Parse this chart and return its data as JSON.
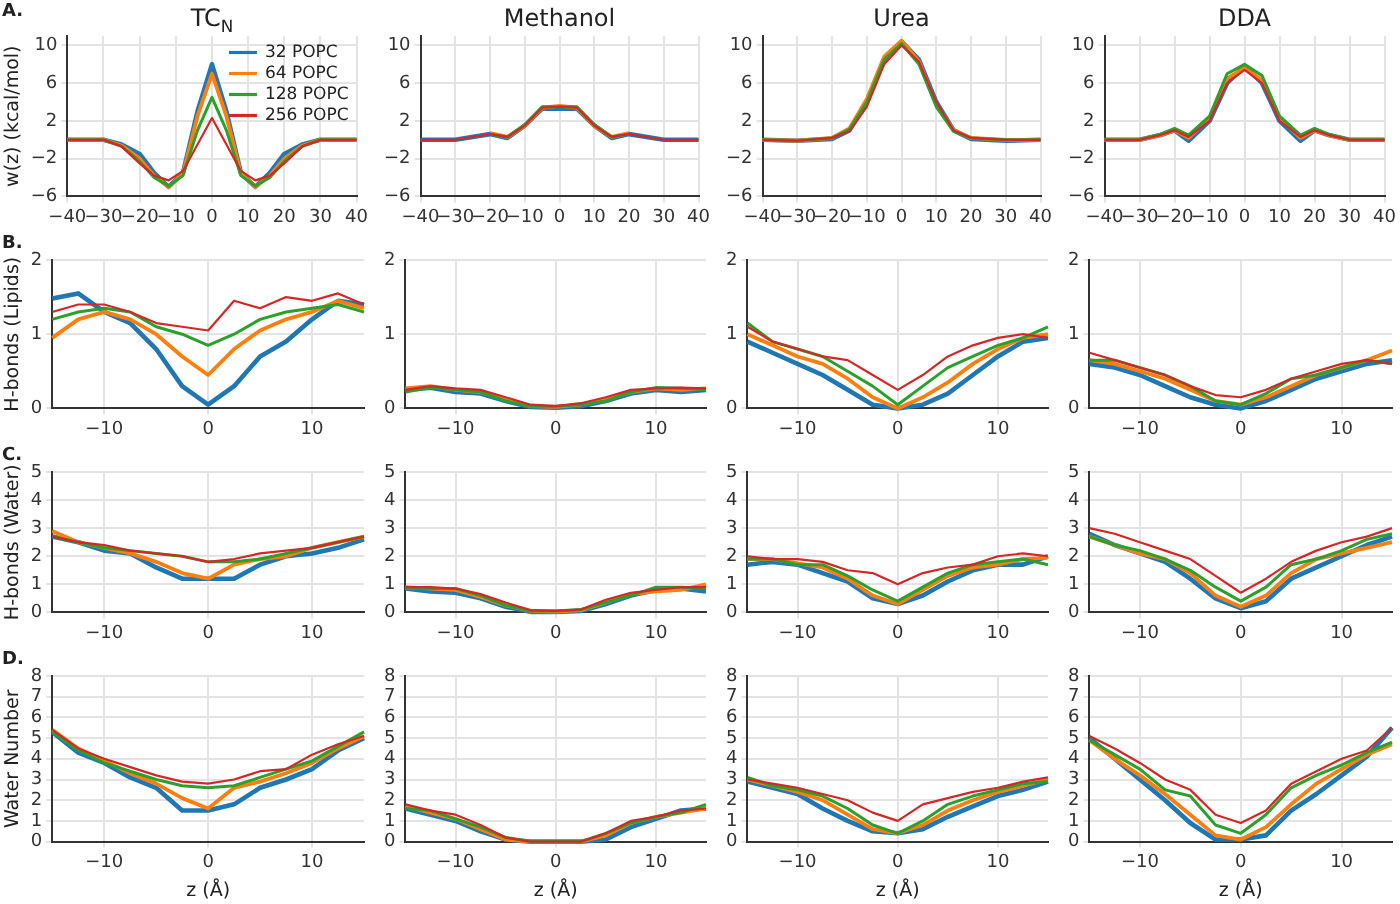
{
  "chart_data": [
    {
      "type": "line",
      "title": "TC$_{N}$",
      "ylabel": "w(z) (kcal/mol)",
      "annotations": [
        "A."
      ],
      "legend": "top right",
      "grid": true,
      "xlim": [
        -40,
        40
      ],
      "ylim": [
        -6,
        11
      ],
      "xticks": [
        -40,
        -30,
        -20,
        -10,
        0,
        10,
        20,
        30,
        40
      ],
      "yticks": [
        -6,
        -2,
        2,
        6,
        10
      ],
      "x": [
        -40,
        -30,
        -25,
        -20,
        -16,
        -12,
        -8,
        -4,
        0,
        4,
        8,
        12,
        16,
        20,
        25,
        30,
        40
      ],
      "series": [
        {
          "name": "32 POPC",
          "color": "#1f77b4",
          "values": [
            0,
            0,
            -0.5,
            -1.5,
            -3.5,
            -5,
            -3.5,
            3,
            8,
            3,
            -3.5,
            -5,
            -3.5,
            -1.5,
            -0.5,
            0,
            0
          ]
        },
        {
          "name": "64 POPC",
          "color": "#ff7f0e",
          "values": [
            0,
            0,
            -0.6,
            -2,
            -3.8,
            -5,
            -3.6,
            2.5,
            7,
            2.5,
            -3.6,
            -5,
            -3.8,
            -2,
            -0.6,
            0,
            0
          ]
        },
        {
          "name": "128 POPC",
          "color": "#2ca02c",
          "values": [
            0,
            0,
            -0.7,
            -2.3,
            -4,
            -4.9,
            -3.8,
            1,
            4.5,
            1,
            -3.8,
            -4.9,
            -4,
            -2.3,
            -0.7,
            0,
            0
          ]
        },
        {
          "name": "256 POPC",
          "color": "#d62728",
          "values": [
            0,
            0,
            -0.7,
            -2.5,
            -3.8,
            -4.3,
            -3.3,
            -0.5,
            2.3,
            -0.5,
            -3.3,
            -4.3,
            -3.8,
            -2.5,
            -0.7,
            0,
            0
          ]
        }
      ]
    },
    {
      "type": "line",
      "title": "Methanol",
      "grid": true,
      "xlim": [
        -40,
        40
      ],
      "ylim": [
        -6,
        11
      ],
      "xticks": [
        -40,
        -30,
        -20,
        -10,
        0,
        10,
        20,
        30,
        40
      ],
      "yticks": [
        -6,
        -2,
        2,
        6,
        10
      ],
      "x": [
        -40,
        -30,
        -20,
        -15,
        -10,
        -5,
        0,
        5,
        10,
        15,
        20,
        30,
        40
      ],
      "series": [
        {
          "color": "#1f77b4",
          "values": [
            0,
            0,
            0.6,
            0.2,
            1.5,
            3.3,
            3.3,
            3.3,
            1.5,
            0.2,
            0.6,
            0,
            0
          ]
        },
        {
          "color": "#ff7f0e",
          "values": [
            null,
            null,
            0.7,
            0.3,
            1.5,
            3.4,
            3.6,
            3.4,
            1.5,
            0.3,
            0.7,
            null,
            null
          ]
        },
        {
          "color": "#2ca02c",
          "values": [
            null,
            null,
            0.6,
            0.3,
            1.6,
            3.5,
            3.5,
            3.5,
            1.6,
            0.3,
            0.6,
            null,
            null
          ]
        },
        {
          "color": "#d62728",
          "values": [
            0,
            0,
            0.6,
            0.3,
            1.5,
            3.4,
            3.5,
            3.4,
            1.5,
            0.3,
            0.6,
            0,
            0
          ]
        }
      ]
    },
    {
      "type": "line",
      "title": "Urea",
      "grid": true,
      "xlim": [
        -40,
        40
      ],
      "ylim": [
        -6,
        11
      ],
      "xticks": [
        -40,
        -30,
        -20,
        -10,
        0,
        10,
        20,
        30,
        40
      ],
      "yticks": [
        -6,
        -2,
        2,
        6,
        10
      ],
      "x": [
        -40,
        -30,
        -20,
        -15,
        -10,
        -5,
        0,
        5,
        10,
        15,
        20,
        30,
        40
      ],
      "series": [
        {
          "color": "#1f77b4",
          "values": [
            0,
            -0.1,
            0.1,
            1,
            4,
            8.5,
            10.4,
            8.5,
            4,
            1,
            0.1,
            -0.1,
            0
          ]
        },
        {
          "color": "#ff7f0e",
          "values": [
            0,
            -0.1,
            0.2,
            1.2,
            4.3,
            8.8,
            10.5,
            8.3,
            3.7,
            1,
            0.2,
            0,
            0
          ]
        },
        {
          "color": "#2ca02c",
          "values": [
            0,
            -0.1,
            0.2,
            1.1,
            4,
            8.5,
            10.2,
            8,
            3.5,
            0.9,
            0.2,
            0,
            0
          ]
        },
        {
          "color": "#d62728",
          "values": [
            0,
            -0.1,
            0.2,
            0.9,
            3.5,
            8,
            10,
            8.3,
            4,
            1,
            0.2,
            0,
            0
          ]
        }
      ]
    },
    {
      "type": "line",
      "title": "DDA",
      "grid": true,
      "xlim": [
        -40,
        40
      ],
      "ylim": [
        -6,
        11
      ],
      "xticks": [
        -40,
        -30,
        -20,
        -10,
        0,
        10,
        20,
        30,
        40
      ],
      "yticks": [
        -6,
        -2,
        2,
        6,
        10
      ],
      "x": [
        -40,
        -30,
        -24,
        -20,
        -16,
        -10,
        -5,
        0,
        5,
        10,
        16,
        20,
        24,
        30,
        40
      ],
      "series": [
        {
          "color": "#1f77b4",
          "values": [
            0,
            0,
            0.5,
            1,
            -0.1,
            2,
            6,
            7.8,
            6,
            2,
            -0.1,
            1,
            0.5,
            0,
            0
          ]
        },
        {
          "color": "#ff7f0e",
          "values": [
            0,
            0,
            0.5,
            1,
            0.2,
            2.3,
            6.5,
            7.6,
            6.3,
            2.3,
            0.2,
            1,
            0.5,
            0,
            0
          ]
        },
        {
          "color": "#2ca02c",
          "values": [
            0,
            0,
            0.6,
            1.2,
            0.5,
            2.5,
            7,
            8,
            6.8,
            2.5,
            0.5,
            1.2,
            0.6,
            0,
            0
          ]
        },
        {
          "color": "#d62728",
          "values": [
            0,
            0,
            0.5,
            1,
            0.3,
            2,
            6,
            7.4,
            6,
            2,
            0.3,
            1,
            0.5,
            0,
            0
          ]
        }
      ]
    },
    {
      "type": "line",
      "ylabel": "H-bonds (Lipids)",
      "annotations": [
        "B."
      ],
      "grid": true,
      "xlim": [
        -15,
        15
      ],
      "ylim": [
        0,
        2
      ],
      "xticks": [
        -10,
        0,
        10
      ],
      "yticks": [
        0,
        1,
        2
      ],
      "x": [
        -15,
        -12.5,
        -10,
        -7.5,
        -5,
        -2.5,
        0,
        2.5,
        5,
        7.5,
        10,
        12.5,
        15
      ],
      "series": [
        {
          "color": "#1f77b4",
          "values": [
            1.48,
            1.55,
            1.3,
            1.15,
            0.8,
            0.3,
            0.05,
            0.3,
            0.7,
            0.9,
            1.2,
            1.45,
            1.4
          ]
        },
        {
          "color": "#ff7f0e",
          "values": [
            0.95,
            1.2,
            1.3,
            1.2,
            1.0,
            0.7,
            0.45,
            0.8,
            1.05,
            1.2,
            1.3,
            1.45,
            1.35
          ]
        },
        {
          "color": "#2ca02c",
          "values": [
            1.2,
            1.3,
            1.35,
            1.3,
            1.1,
            1.0,
            0.85,
            1.0,
            1.2,
            1.3,
            1.35,
            1.4,
            1.3
          ]
        },
        {
          "color": "#d62728",
          "values": [
            1.3,
            1.4,
            1.4,
            1.3,
            1.15,
            1.1,
            1.05,
            1.45,
            1.35,
            1.5,
            1.45,
            1.55,
            1.4
          ]
        }
      ]
    },
    {
      "type": "line",
      "grid": true,
      "xlim": [
        -15,
        15
      ],
      "ylim": [
        0,
        2
      ],
      "xticks": [
        -10,
        0,
        10
      ],
      "yticks": [
        0,
        1,
        2
      ],
      "x": [
        -15,
        -12.5,
        -10,
        -7.5,
        -5,
        -2.5,
        0,
        2.5,
        5,
        7.5,
        10,
        12.5,
        15
      ],
      "series": [
        {
          "color": "#1f77b4",
          "values": [
            0.25,
            0.28,
            0.22,
            0.2,
            0.1,
            0.02,
            0.01,
            0.03,
            0.1,
            0.2,
            0.25,
            0.22,
            0.25
          ]
        },
        {
          "color": "#ff7f0e",
          "values": [
            0.27,
            0.3,
            0.25,
            0.22,
            0.12,
            0.03,
            0.02,
            0.05,
            0.12,
            0.22,
            0.27,
            0.25,
            0.27
          ]
        },
        {
          "color": "#2ca02c",
          "values": [
            0.22,
            0.28,
            0.25,
            0.22,
            0.1,
            0.03,
            0.03,
            0.05,
            0.1,
            0.22,
            0.28,
            0.27,
            0.25
          ]
        },
        {
          "color": "#d62728",
          "values": [
            0.25,
            0.3,
            0.27,
            0.25,
            0.15,
            0.05,
            0.03,
            0.07,
            0.15,
            0.25,
            0.27,
            0.28,
            0.27
          ]
        }
      ]
    },
    {
      "type": "line",
      "grid": true,
      "xlim": [
        -15,
        15
      ],
      "ylim": [
        0,
        2
      ],
      "xticks": [
        -10,
        0,
        10
      ],
      "yticks": [
        0,
        1,
        2
      ],
      "x": [
        -15,
        -12.5,
        -10,
        -7.5,
        -5,
        -2.5,
        0,
        2.5,
        5,
        7.5,
        10,
        12.5,
        15
      ],
      "series": [
        {
          "color": "#1f77b4",
          "values": [
            0.9,
            0.75,
            0.6,
            0.45,
            0.25,
            0.05,
            0,
            0.05,
            0.2,
            0.45,
            0.7,
            0.9,
            0.95
          ]
        },
        {
          "color": "#ff7f0e",
          "values": [
            1.0,
            0.85,
            0.7,
            0.6,
            0.4,
            0.15,
            0,
            0.15,
            0.35,
            0.6,
            0.8,
            0.95,
            1.0
          ]
        },
        {
          "color": "#2ca02c",
          "values": [
            1.15,
            0.9,
            0.8,
            0.7,
            0.5,
            0.3,
            0.05,
            0.3,
            0.55,
            0.7,
            0.85,
            0.95,
            1.1
          ]
        },
        {
          "color": "#d62728",
          "values": [
            1.1,
            0.9,
            0.8,
            0.7,
            0.65,
            0.45,
            0.25,
            0.45,
            0.7,
            0.85,
            0.95,
            1.0,
            0.95
          ]
        }
      ]
    },
    {
      "type": "line",
      "grid": true,
      "xlim": [
        -15,
        15
      ],
      "ylim": [
        0,
        2
      ],
      "xticks": [
        -10,
        0,
        10
      ],
      "yticks": [
        0,
        1,
        2
      ],
      "x": [
        -15,
        -12.5,
        -10,
        -7.5,
        -5,
        -2.5,
        0,
        2.5,
        5,
        7.5,
        10,
        12.5,
        15
      ],
      "series": [
        {
          "color": "#1f77b4",
          "values": [
            0.6,
            0.55,
            0.45,
            0.3,
            0.15,
            0.05,
            0,
            0.1,
            0.25,
            0.4,
            0.5,
            0.6,
            0.65
          ]
        },
        {
          "color": "#ff7f0e",
          "values": [
            0.65,
            0.6,
            0.5,
            0.4,
            0.25,
            0.1,
            0.05,
            0.15,
            0.3,
            0.45,
            0.55,
            0.65,
            0.78
          ]
        },
        {
          "color": "#2ca02c",
          "values": [
            0.65,
            0.65,
            0.55,
            0.45,
            0.3,
            0.1,
            0.05,
            0.2,
            0.4,
            0.45,
            0.55,
            0.65,
            0.6
          ]
        },
        {
          "color": "#d62728",
          "values": [
            0.75,
            0.65,
            0.55,
            0.45,
            0.3,
            0.18,
            0.15,
            0.25,
            0.4,
            0.5,
            0.6,
            0.65,
            0.6
          ]
        }
      ]
    },
    {
      "type": "line",
      "ylabel": "H-bonds (Water)",
      "annotations": [
        "C."
      ],
      "grid": true,
      "xlim": [
        -15,
        15
      ],
      "ylim": [
        0,
        5
      ],
      "xticks": [
        -10,
        0,
        10
      ],
      "yticks": [
        0,
        1,
        2,
        3,
        4,
        5
      ],
      "x": [
        -15,
        -12.5,
        -10,
        -7.5,
        -5,
        -2.5,
        0,
        2.5,
        5,
        7.5,
        10,
        12.5,
        15
      ],
      "series": [
        {
          "color": "#1f77b4",
          "values": [
            2.7,
            2.5,
            2.2,
            2.1,
            1.6,
            1.2,
            1.2,
            1.2,
            1.7,
            2.0,
            2.1,
            2.3,
            2.6
          ]
        },
        {
          "color": "#ff7f0e",
          "values": [
            2.9,
            2.5,
            2.3,
            2.1,
            1.8,
            1.4,
            1.2,
            1.7,
            1.9,
            2.0,
            2.3,
            2.5,
            2.7
          ]
        },
        {
          "color": "#2ca02c",
          "values": [
            2.7,
            2.5,
            2.3,
            2.2,
            2.1,
            2.0,
            1.8,
            1.8,
            1.9,
            2.1,
            2.3,
            2.5,
            2.7
          ]
        },
        {
          "color": "#d62728",
          "values": [
            2.7,
            2.5,
            2.4,
            2.2,
            2.1,
            2.0,
            1.8,
            1.9,
            2.1,
            2.2,
            2.3,
            2.5,
            2.7
          ]
        }
      ]
    },
    {
      "type": "line",
      "grid": true,
      "xlim": [
        -15,
        15
      ],
      "ylim": [
        0,
        5
      ],
      "xticks": [
        -10,
        0,
        10
      ],
      "yticks": [
        0,
        1,
        2,
        3,
        4,
        5
      ],
      "x": [
        -15,
        -12.5,
        -10,
        -7.5,
        -5,
        -2.5,
        0,
        2.5,
        5,
        7.5,
        10,
        12.5,
        15
      ],
      "series": [
        {
          "color": "#1f77b4",
          "values": [
            0.85,
            0.75,
            0.7,
            0.5,
            0.2,
            0.02,
            0.02,
            0.05,
            0.3,
            0.6,
            0.8,
            0.85,
            0.75
          ]
        },
        {
          "color": "#ff7f0e",
          "values": [
            0.9,
            0.85,
            0.8,
            0.55,
            0.25,
            0.05,
            0.03,
            0.08,
            0.35,
            0.65,
            0.75,
            0.8,
            1.0
          ]
        },
        {
          "color": "#2ca02c",
          "values": [
            0.85,
            0.85,
            0.85,
            0.6,
            0.25,
            0.05,
            0.05,
            0.1,
            0.35,
            0.6,
            0.9,
            0.9,
            0.85
          ]
        },
        {
          "color": "#d62728",
          "values": [
            0.9,
            0.9,
            0.85,
            0.65,
            0.35,
            0.08,
            0.05,
            0.1,
            0.45,
            0.7,
            0.8,
            0.9,
            0.9
          ]
        }
      ]
    },
    {
      "type": "line",
      "grid": true,
      "xlim": [
        -15,
        15
      ],
      "ylim": [
        0,
        5
      ],
      "xticks": [
        -10,
        0,
        10
      ],
      "yticks": [
        0,
        1,
        2,
        3,
        4,
        5
      ],
      "x": [
        -15,
        -12.5,
        -10,
        -7.5,
        -5,
        -2.5,
        0,
        2.5,
        5,
        7.5,
        10,
        12.5,
        15
      ],
      "series": [
        {
          "color": "#1f77b4",
          "values": [
            1.7,
            1.8,
            1.7,
            1.4,
            1.1,
            0.5,
            0.3,
            0.6,
            1.1,
            1.5,
            1.7,
            1.7,
            2.0
          ]
        },
        {
          "color": "#ff7f0e",
          "values": [
            1.9,
            1.9,
            1.75,
            1.6,
            1.2,
            0.6,
            0.3,
            0.8,
            1.3,
            1.6,
            1.7,
            1.9,
            1.95
          ]
        },
        {
          "color": "#2ca02c",
          "values": [
            1.9,
            1.9,
            1.7,
            1.7,
            1.3,
            0.8,
            0.4,
            0.9,
            1.4,
            1.7,
            1.8,
            1.9,
            1.7
          ]
        },
        {
          "color": "#d62728",
          "values": [
            2.0,
            1.9,
            1.9,
            1.8,
            1.5,
            1.4,
            1.0,
            1.4,
            1.6,
            1.7,
            2.0,
            2.1,
            2.0
          ]
        }
      ]
    },
    {
      "type": "line",
      "grid": true,
      "xlim": [
        -15,
        15
      ],
      "ylim": [
        0,
        5
      ],
      "xticks": [
        -10,
        0,
        10
      ],
      "yticks": [
        0,
        1,
        2,
        3,
        4,
        5
      ],
      "x": [
        -15,
        -12.5,
        -10,
        -7.5,
        -5,
        -2.5,
        0,
        2.5,
        5,
        7.5,
        10,
        12.5,
        15
      ],
      "series": [
        {
          "color": "#1f77b4",
          "values": [
            2.8,
            2.4,
            2.1,
            1.8,
            1.2,
            0.5,
            0.15,
            0.4,
            1.2,
            1.6,
            2.0,
            2.4,
            2.7
          ]
        },
        {
          "color": "#ff7f0e",
          "values": [
            2.7,
            2.4,
            2.1,
            1.9,
            1.4,
            0.6,
            0.2,
            0.6,
            1.4,
            1.9,
            2.1,
            2.3,
            2.5
          ]
        },
        {
          "color": "#2ca02c",
          "values": [
            2.7,
            2.4,
            2.2,
            1.9,
            1.5,
            0.9,
            0.4,
            0.9,
            1.7,
            1.9,
            2.2,
            2.6,
            2.8
          ]
        },
        {
          "color": "#d62728",
          "values": [
            3.0,
            2.8,
            2.5,
            2.2,
            1.9,
            1.3,
            0.7,
            1.2,
            1.8,
            2.2,
            2.5,
            2.7,
            3.0
          ]
        }
      ]
    },
    {
      "type": "line",
      "ylabel": "Water Number",
      "xlabel": "z (Å)",
      "annotations": [
        "D."
      ],
      "grid": true,
      "xlim": [
        -15,
        15
      ],
      "ylim": [
        0,
        8
      ],
      "xticks": [
        -10,
        0,
        10
      ],
      "yticks": [
        0,
        1,
        2,
        3,
        4,
        5,
        6,
        7,
        8
      ],
      "x": [
        -15,
        -12.5,
        -10,
        -7.5,
        -5,
        -2.5,
        0,
        2.5,
        5,
        7.5,
        10,
        12.5,
        15
      ],
      "series": [
        {
          "color": "#1f77b4",
          "values": [
            5.3,
            4.3,
            3.8,
            3.1,
            2.6,
            1.5,
            1.5,
            1.8,
            2.6,
            3.0,
            3.5,
            4.4,
            5.0
          ]
        },
        {
          "color": "#ff7f0e",
          "values": [
            5.4,
            4.5,
            3.9,
            3.3,
            2.8,
            2.1,
            1.6,
            2.6,
            2.9,
            3.3,
            3.8,
            4.5,
            5.1
          ]
        },
        {
          "color": "#2ca02c",
          "values": [
            5.3,
            4.4,
            3.8,
            3.4,
            3.0,
            2.7,
            2.6,
            2.7,
            3.1,
            3.5,
            3.9,
            4.6,
            5.3
          ]
        },
        {
          "color": "#d62728",
          "values": [
            5.4,
            4.5,
            4.0,
            3.6,
            3.2,
            2.9,
            2.8,
            3.0,
            3.4,
            3.5,
            4.2,
            4.7,
            5.1
          ]
        }
      ]
    },
    {
      "type": "line",
      "xlabel": "z (Å)",
      "grid": true,
      "xlim": [
        -15,
        15
      ],
      "ylim": [
        0,
        8
      ],
      "xticks": [
        -10,
        0,
        10
      ],
      "yticks": [
        0,
        1,
        2,
        3,
        4,
        5,
        6,
        7,
        8
      ],
      "x": [
        -15,
        -12.5,
        -10,
        -7.5,
        -5,
        -2.5,
        0,
        2.5,
        5,
        7.5,
        10,
        12.5,
        15
      ],
      "series": [
        {
          "color": "#1f77b4",
          "values": [
            1.6,
            1.3,
            1.0,
            0.5,
            0.1,
            0,
            0,
            0,
            0.1,
            0.7,
            1.1,
            1.5,
            1.6
          ]
        },
        {
          "color": "#ff7f0e",
          "values": [
            1.7,
            1.4,
            1.1,
            0.6,
            0.1,
            0,
            0,
            0,
            0.3,
            0.9,
            1.2,
            1.4,
            1.6
          ]
        },
        {
          "color": "#2ca02c",
          "values": [
            1.6,
            1.5,
            1.1,
            0.7,
            0.2,
            0,
            0,
            0,
            0.4,
            0.9,
            1.2,
            1.4,
            1.8
          ]
        },
        {
          "color": "#d62728",
          "values": [
            1.8,
            1.5,
            1.3,
            0.8,
            0.2,
            0,
            0,
            0,
            0.4,
            1.0,
            1.2,
            1.5,
            1.6
          ]
        }
      ]
    },
    {
      "type": "line",
      "xlabel": "z (Å)",
      "grid": true,
      "xlim": [
        -15,
        15
      ],
      "ylim": [
        0,
        8
      ],
      "xticks": [
        -10,
        0,
        10
      ],
      "yticks": [
        0,
        1,
        2,
        3,
        4,
        5,
        6,
        7,
        8
      ],
      "x": [
        -15,
        -12.5,
        -10,
        -7.5,
        -5,
        -2.5,
        0,
        2.5,
        5,
        7.5,
        10,
        12.5,
        15
      ],
      "series": [
        {
          "color": "#1f77b4",
          "values": [
            2.9,
            2.6,
            2.3,
            1.6,
            1.0,
            0.5,
            0.4,
            0.6,
            1.2,
            1.7,
            2.2,
            2.5,
            2.9
          ]
        },
        {
          "color": "#ff7f0e",
          "values": [
            3.0,
            2.7,
            2.4,
            2.0,
            1.3,
            0.6,
            0.4,
            0.8,
            1.5,
            2.0,
            2.4,
            2.7,
            3.0
          ]
        },
        {
          "color": "#2ca02c",
          "values": [
            3.1,
            2.7,
            2.5,
            2.2,
            1.6,
            0.8,
            0.4,
            1.0,
            1.8,
            2.2,
            2.5,
            2.8,
            2.9
          ]
        },
        {
          "color": "#d62728",
          "values": [
            3.0,
            2.8,
            2.6,
            2.3,
            2.0,
            1.4,
            1.0,
            1.8,
            2.1,
            2.4,
            2.6,
            2.9,
            3.1
          ]
        }
      ]
    },
    {
      "type": "line",
      "xlabel": "z (Å)",
      "grid": true,
      "xlim": [
        -15,
        15
      ],
      "ylim": [
        0,
        8
      ],
      "xticks": [
        -10,
        0,
        10
      ],
      "yticks": [
        0,
        1,
        2,
        3,
        4,
        5,
        6,
        7,
        8
      ],
      "x": [
        -15,
        -12.5,
        -10,
        -7.5,
        -5,
        -2.5,
        0,
        2.5,
        5,
        7.5,
        10,
        12.5,
        15
      ],
      "series": [
        {
          "color": "#1f77b4",
          "values": [
            5.0,
            4.0,
            3.0,
            2.0,
            0.9,
            0.1,
            0.1,
            0.3,
            1.5,
            2.3,
            3.2,
            4.1,
            5.5
          ]
        },
        {
          "color": "#ff7f0e",
          "values": [
            4.9,
            4.0,
            3.2,
            2.3,
            1.3,
            0.3,
            0.1,
            0.7,
            1.8,
            2.8,
            3.5,
            4.2,
            4.7
          ]
        },
        {
          "color": "#2ca02c",
          "values": [
            4.9,
            4.2,
            3.5,
            2.5,
            2.2,
            0.8,
            0.4,
            1.3,
            2.6,
            3.2,
            3.7,
            4.3,
            4.8
          ]
        },
        {
          "color": "#d62728",
          "values": [
            5.1,
            4.5,
            3.8,
            3.0,
            2.5,
            1.3,
            0.9,
            1.5,
            2.8,
            3.4,
            4.0,
            4.4,
            5.5
          ]
        }
      ]
    }
  ]
}
